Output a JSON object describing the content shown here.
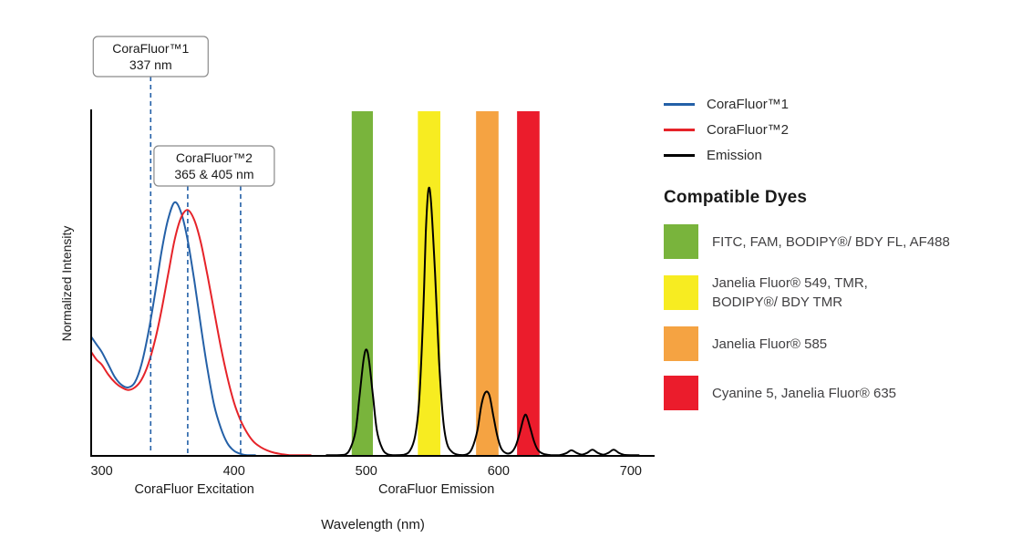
{
  "chart_data": {
    "type": "line",
    "title": "",
    "xlabel": "Wavelength (nm)",
    "ylabel": "Normalized Intensity",
    "x_ticks": [
      300,
      400,
      500,
      600,
      700
    ],
    "xlim": [
      292,
      718
    ],
    "ylim": [
      0,
      1.36
    ],
    "grid": false,
    "legend_position": "top-right",
    "axis_section_labels": [
      {
        "text": "CoraFluor Excitation",
        "x": 370
      },
      {
        "text": "CoraFluor Emission",
        "x": 553
      }
    ],
    "callouts": [
      {
        "line1": "CoraFluor™1",
        "line2": "337 nm",
        "marks_nm": [
          337
        ]
      },
      {
        "line1": "CoraFluor™2",
        "line2": "365 & 405 nm",
        "marks_nm": [
          365,
          405
        ]
      }
    ],
    "dash_color": "#2460a7",
    "bands": [
      {
        "x1": 489,
        "x2": 505,
        "color": "#79b43c"
      },
      {
        "x1": 539,
        "x2": 556,
        "color": "#f7ec21"
      },
      {
        "x1": 583,
        "x2": 600,
        "color": "#f5a342"
      },
      {
        "x1": 614,
        "x2": 631,
        "color": "#eb1c2c"
      }
    ],
    "series": [
      {
        "name": "CoraFluor™1",
        "color": "#2460a7",
        "width": 2,
        "points": [
          [
            292,
            0.47
          ],
          [
            296,
            0.44
          ],
          [
            300,
            0.41
          ],
          [
            305,
            0.36
          ],
          [
            310,
            0.31
          ],
          [
            315,
            0.28
          ],
          [
            320,
            0.27
          ],
          [
            325,
            0.29
          ],
          [
            330,
            0.36
          ],
          [
            335,
            0.48
          ],
          [
            340,
            0.63
          ],
          [
            345,
            0.8
          ],
          [
            350,
            0.93
          ],
          [
            355,
            1.0
          ],
          [
            360,
            0.96
          ],
          [
            365,
            0.85
          ],
          [
            370,
            0.69
          ],
          [
            375,
            0.51
          ],
          [
            380,
            0.34
          ],
          [
            385,
            0.2
          ],
          [
            390,
            0.11
          ],
          [
            395,
            0.05
          ],
          [
            400,
            0.02
          ],
          [
            405,
            0.008
          ],
          [
            410,
            0.002
          ],
          [
            416,
            0
          ]
        ]
      },
      {
        "name": "CoraFluor™2",
        "color": "#e62329",
        "width": 2,
        "points": [
          [
            292,
            0.41
          ],
          [
            296,
            0.38
          ],
          [
            300,
            0.36
          ],
          [
            305,
            0.32
          ],
          [
            310,
            0.29
          ],
          [
            315,
            0.27
          ],
          [
            320,
            0.26
          ],
          [
            325,
            0.27
          ],
          [
            330,
            0.3
          ],
          [
            335,
            0.36
          ],
          [
            340,
            0.45
          ],
          [
            345,
            0.57
          ],
          [
            350,
            0.71
          ],
          [
            355,
            0.85
          ],
          [
            360,
            0.94
          ],
          [
            365,
            0.97
          ],
          [
            370,
            0.93
          ],
          [
            375,
            0.84
          ],
          [
            380,
            0.71
          ],
          [
            385,
            0.57
          ],
          [
            390,
            0.43
          ],
          [
            395,
            0.31
          ],
          [
            400,
            0.21
          ],
          [
            405,
            0.14
          ],
          [
            410,
            0.09
          ],
          [
            415,
            0.055
          ],
          [
            420,
            0.035
          ],
          [
            425,
            0.022
          ],
          [
            430,
            0.013
          ],
          [
            436,
            0.007
          ],
          [
            442,
            0.003
          ],
          [
            450,
            0.001
          ],
          [
            458,
            0
          ]
        ]
      },
      {
        "name": "Emission",
        "color": "#000000",
        "width": 2,
        "points": [
          [
            470,
            0
          ],
          [
            478,
            0.001
          ],
          [
            484,
            0.005
          ],
          [
            488,
            0.03
          ],
          [
            492,
            0.1
          ],
          [
            495,
            0.24
          ],
          [
            498,
            0.38
          ],
          [
            500,
            0.42
          ],
          [
            502,
            0.38
          ],
          [
            505,
            0.24
          ],
          [
            508,
            0.1
          ],
          [
            512,
            0.03
          ],
          [
            516,
            0.007
          ],
          [
            522,
            0.002
          ],
          [
            528,
            0.004
          ],
          [
            533,
            0.02
          ],
          [
            537,
            0.08
          ],
          [
            540,
            0.22
          ],
          [
            543,
            0.55
          ],
          [
            545,
            0.88
          ],
          [
            547,
            1.05
          ],
          [
            549,
            1.0
          ],
          [
            552,
            0.72
          ],
          [
            555,
            0.38
          ],
          [
            558,
            0.15
          ],
          [
            561,
            0.05
          ],
          [
            565,
            0.015
          ],
          [
            570,
            0.004
          ],
          [
            576,
            0.006
          ],
          [
            580,
            0.03
          ],
          [
            584,
            0.1
          ],
          [
            587,
            0.2
          ],
          [
            590,
            0.25
          ],
          [
            593,
            0.24
          ],
          [
            596,
            0.16
          ],
          [
            599,
            0.08
          ],
          [
            602,
            0.03
          ],
          [
            606,
            0.01
          ],
          [
            610,
            0.015
          ],
          [
            613,
            0.04
          ],
          [
            616,
            0.09
          ],
          [
            619,
            0.15
          ],
          [
            621,
            0.16
          ],
          [
            624,
            0.11
          ],
          [
            627,
            0.055
          ],
          [
            630,
            0.022
          ],
          [
            634,
            0.008
          ],
          [
            640,
            0.003
          ],
          [
            646,
            0.003
          ],
          [
            651,
            0.01
          ],
          [
            655,
            0.022
          ],
          [
            659,
            0.012
          ],
          [
            663,
            0.005
          ],
          [
            667,
            0.012
          ],
          [
            671,
            0.024
          ],
          [
            675,
            0.012
          ],
          [
            679,
            0.005
          ],
          [
            683,
            0.012
          ],
          [
            687,
            0.024
          ],
          [
            691,
            0.012
          ],
          [
            695,
            0.004
          ],
          [
            700,
            0.001
          ],
          [
            706,
            0
          ]
        ]
      }
    ]
  },
  "legend": {
    "items": [
      {
        "label": "CoraFluor™1",
        "color": "#2460a7"
      },
      {
        "label": "CoraFluor™2",
        "color": "#e62329"
      },
      {
        "label": "Emission",
        "color": "#000000"
      }
    ]
  },
  "compatible_dyes": {
    "heading": "Compatible Dyes",
    "items": [
      {
        "color": "#79b43c",
        "label": "FITC, FAM, BODIPY®/ BDY FL, AF488"
      },
      {
        "color": "#f7ec21",
        "label": "Janelia Fluor® 549, TMR,\nBODIPY®/ BDY TMR"
      },
      {
        "color": "#f5a342",
        "label": "Janelia Fluor® 585"
      },
      {
        "color": "#eb1c2c",
        "label": "Cyanine 5, Janelia Fluor® 635"
      }
    ]
  }
}
